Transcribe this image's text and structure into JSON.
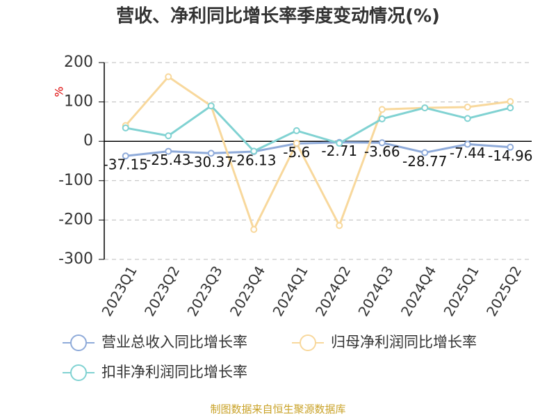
{
  "chart_data": {
    "type": "line",
    "title": "营收、净利同比增长率季度变动情况(%)",
    "y_label": "%",
    "categories": [
      "2023Q1",
      "2023Q2",
      "2023Q3",
      "2023Q4",
      "2024Q1",
      "2024Q2",
      "2024Q3",
      "2024Q4",
      "2025Q1",
      "2025Q2"
    ],
    "series": [
      {
        "name": "营业总收入同比增长率",
        "color": "#8eaad9",
        "values": [
          -37.15,
          -25.43,
          -30.37,
          -26.13,
          -5.6,
          -2.71,
          -3.66,
          -28.77,
          -7.44,
          -14.96
        ],
        "data_labels": true
      },
      {
        "name": "归母净利润同比增长率",
        "color": "#f8d89c",
        "values": [
          40,
          164,
          90,
          -224,
          -5,
          -214,
          81,
          85,
          87,
          101
        ],
        "data_labels": false
      },
      {
        "name": "扣非净利润同比增长率",
        "color": "#80d2d2",
        "values": [
          34,
          14,
          90,
          -25,
          27,
          -5,
          57,
          85,
          58,
          85
        ],
        "data_labels": false
      }
    ],
    "ylim": [
      -300,
      200
    ],
    "yticks": [
      -300,
      -200,
      -100,
      0,
      100,
      200
    ],
    "grid": true,
    "source": "制图数据来自恒生聚源数据库"
  }
}
